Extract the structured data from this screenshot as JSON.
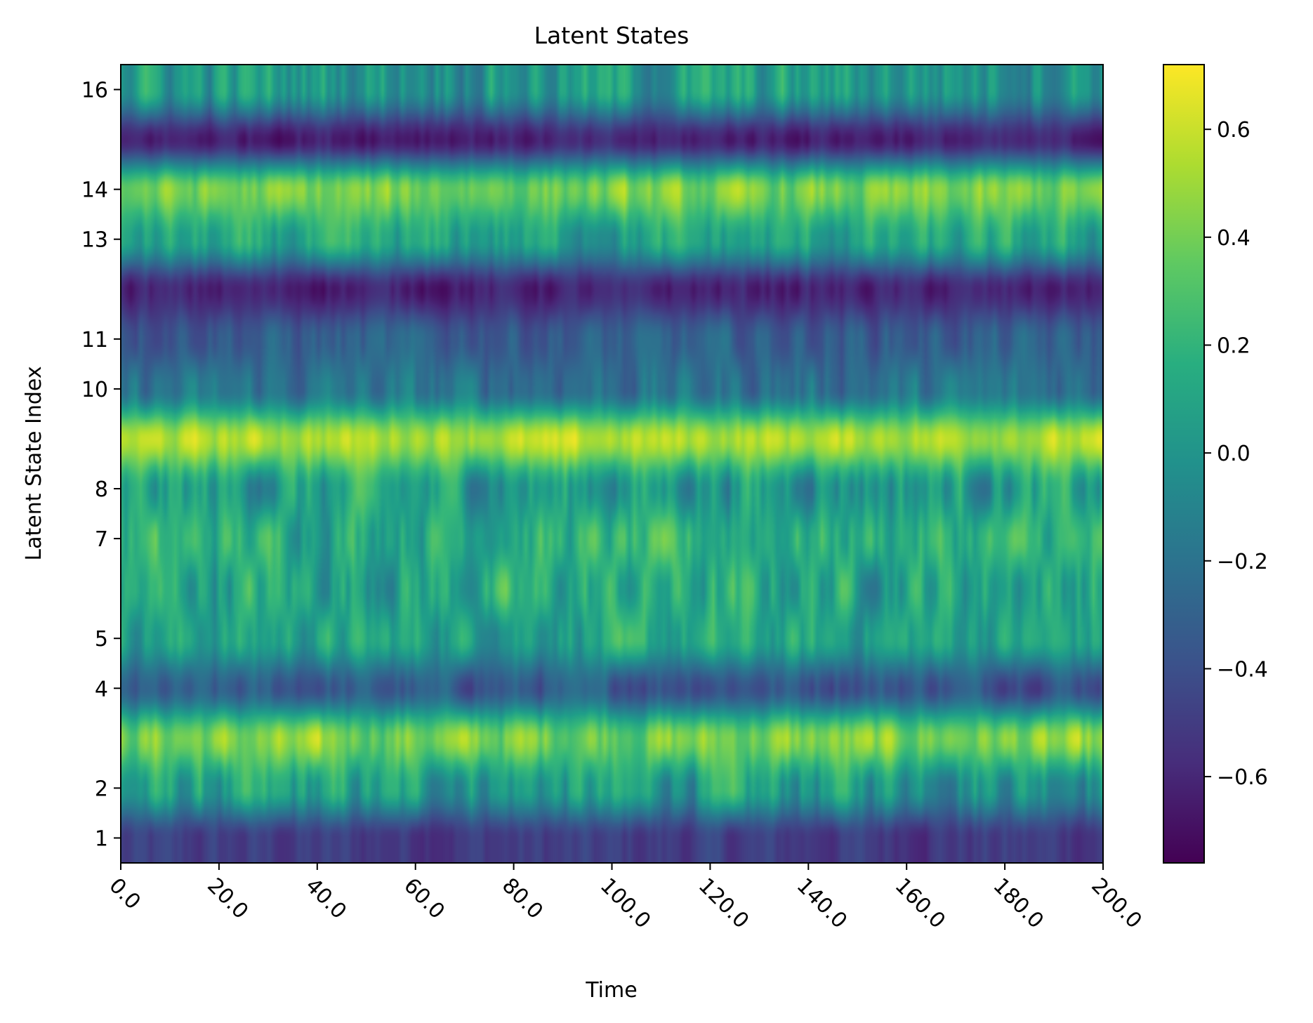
{
  "chart_data": {
    "type": "heatmap",
    "title": "Latent States",
    "xlabel": "Time",
    "ylabel": "Latent State Index",
    "xlim": [
      0,
      200
    ],
    "ylim": [
      0.5,
      16.5
    ],
    "x_ticks": [
      0,
      20,
      40,
      60,
      80,
      100,
      120,
      140,
      160,
      180,
      200
    ],
    "x_tick_labels": [
      "0.0",
      "20.0",
      "40.0",
      "60.0",
      "80.0",
      "100.0",
      "120.0",
      "140.0",
      "160.0",
      "180.0",
      "200.0"
    ],
    "y_ticks": [
      1,
      2,
      4,
      5,
      7,
      8,
      10,
      11,
      13,
      14,
      16
    ],
    "y_tick_labels": [
      "1",
      "2",
      "4",
      "5",
      "7",
      "8",
      "10",
      "11",
      "13",
      "14",
      "16"
    ],
    "colormap": "viridis",
    "interpolation": "smooth",
    "vmin": -0.76,
    "vmax": 0.72,
    "colorbar_ticks": [
      0.6,
      0.4,
      0.2,
      0.0,
      -0.2,
      -0.4,
      -0.6
    ],
    "colorbar_tick_labels": [
      "0.6",
      "0.4",
      "0.2",
      "0.0",
      "−0.2",
      "−0.4",
      "−0.6"
    ],
    "rows": [
      {
        "state": 1,
        "mean": -0.5,
        "amp": 0.1
      },
      {
        "state": 2,
        "mean": 0.05,
        "amp": 0.25
      },
      {
        "state": 3,
        "mean": 0.42,
        "amp": 0.18
      },
      {
        "state": 4,
        "mean": -0.35,
        "amp": 0.14
      },
      {
        "state": 5,
        "mean": 0.1,
        "amp": 0.2
      },
      {
        "state": 6,
        "mean": 0.12,
        "amp": 0.26
      },
      {
        "state": 7,
        "mean": 0.18,
        "amp": 0.22
      },
      {
        "state": 8,
        "mean": 0.05,
        "amp": 0.26
      },
      {
        "state": 9,
        "mean": 0.55,
        "amp": 0.12
      },
      {
        "state": 10,
        "mean": -0.2,
        "amp": 0.18
      },
      {
        "state": 11,
        "mean": -0.32,
        "amp": 0.14
      },
      {
        "state": 12,
        "mean": -0.62,
        "amp": 0.1
      },
      {
        "state": 13,
        "mean": 0.08,
        "amp": 0.2
      },
      {
        "state": 14,
        "mean": 0.4,
        "amp": 0.16
      },
      {
        "state": 15,
        "mean": -0.62,
        "amp": 0.1
      },
      {
        "state": 16,
        "mean": 0.05,
        "amp": 0.25
      }
    ]
  }
}
